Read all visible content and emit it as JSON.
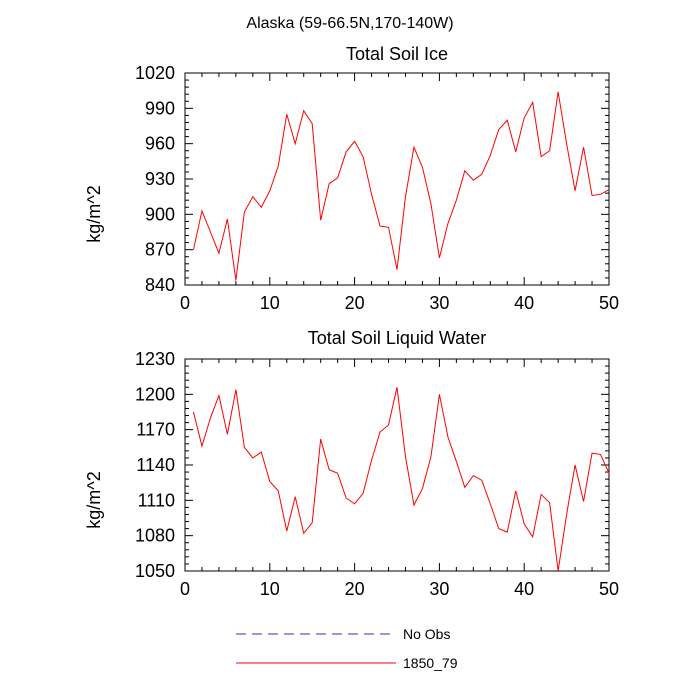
{
  "figure": {
    "suptitle": "Alaska (59-66.5N,170-140W)"
  },
  "chart_data": [
    {
      "type": "line",
      "title": "Total Soil Ice",
      "xlabel": "",
      "ylabel": "kg/m^2",
      "xlim": [
        0,
        50
      ],
      "ylim": [
        840,
        1020
      ],
      "x_ticks": [
        0,
        10,
        20,
        30,
        40,
        50
      ],
      "y_ticks": [
        840,
        870,
        900,
        930,
        960,
        990,
        1020
      ],
      "grid": false,
      "series": [
        {
          "name": "1850_79",
          "color": "#ff0000",
          "x": [
            1,
            2,
            3,
            4,
            5,
            6,
            7,
            8,
            9,
            10,
            11,
            12,
            13,
            14,
            15,
            16,
            17,
            18,
            19,
            20,
            21,
            22,
            23,
            24,
            25,
            26,
            27,
            28,
            29,
            30,
            31,
            32,
            33,
            34,
            35,
            36,
            37,
            38,
            39,
            40,
            41,
            42,
            43,
            44,
            45,
            46,
            47,
            48,
            49,
            50
          ],
          "values": [
            870,
            903,
            885,
            867,
            896,
            844,
            902,
            915,
            906,
            920,
            941,
            985,
            960,
            988,
            977,
            895,
            926,
            931,
            953,
            962,
            949,
            917,
            890,
            889,
            853,
            915,
            957,
            940,
            909,
            863,
            892,
            912,
            937,
            929,
            934,
            950,
            972,
            980,
            953,
            982,
            995,
            949,
            954,
            1004,
            960,
            920,
            957,
            916,
            917,
            921
          ]
        }
      ]
    },
    {
      "type": "line",
      "title": "Total Soil Liquid Water",
      "xlabel": "",
      "ylabel": "kg/m^2",
      "xlim": [
        0,
        50
      ],
      "ylim": [
        1050,
        1230
      ],
      "x_ticks": [
        0,
        10,
        20,
        30,
        40,
        50
      ],
      "y_ticks": [
        1050,
        1080,
        1110,
        1140,
        1170,
        1200,
        1230
      ],
      "grid": false,
      "series": [
        {
          "name": "1850_79",
          "color": "#ff0000",
          "x": [
            1,
            2,
            3,
            4,
            5,
            6,
            7,
            8,
            9,
            10,
            11,
            12,
            13,
            14,
            15,
            16,
            17,
            18,
            19,
            20,
            21,
            22,
            23,
            24,
            25,
            26,
            27,
            28,
            29,
            30,
            31,
            32,
            33,
            34,
            35,
            36,
            37,
            38,
            39,
            40,
            41,
            42,
            43,
            44,
            45,
            46,
            47,
            48,
            49,
            50
          ],
          "values": [
            1185,
            1156,
            1180,
            1199,
            1166,
            1204,
            1155,
            1146,
            1151,
            1126,
            1118,
            1084,
            1113,
            1082,
            1091,
            1162,
            1136,
            1133,
            1112,
            1107,
            1116,
            1144,
            1168,
            1174,
            1206,
            1147,
            1106,
            1120,
            1147,
            1200,
            1164,
            1143,
            1121,
            1131,
            1127,
            1107,
            1086,
            1083,
            1118,
            1090,
            1079,
            1115,
            1108,
            1050,
            1098,
            1140,
            1109,
            1150,
            1149,
            1133
          ]
        }
      ]
    }
  ],
  "legend": {
    "placement": "bottom-center",
    "items": [
      {
        "label": "No Obs",
        "color": "#3333aa",
        "dash": true
      },
      {
        "label": "1850_79",
        "color": "#ff0000",
        "dash": false
      }
    ]
  }
}
